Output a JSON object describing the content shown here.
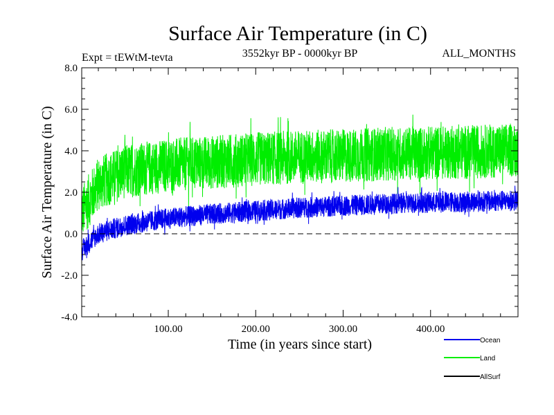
{
  "chart_data": {
    "type": "line",
    "title": "Surface Air Temperature (in C)",
    "subtitle_left": "Expt = tEWtM-tevta",
    "subtitle_center": "3552kyr BP - 0000kyr BP",
    "subtitle_right": "ALL_MONTHS",
    "xlabel": "Time (in years since start)",
    "ylabel": "Surface Air Temperature (in C)",
    "xlim": [
      1,
      500
    ],
    "ylim": [
      -4.0,
      8.0
    ],
    "x_ticks": [
      100,
      200,
      300,
      400
    ],
    "x_tick_labels": [
      "100.00",
      "200.00",
      "300.00",
      "400.00"
    ],
    "y_ticks": [
      -4,
      -2,
      0,
      2,
      4,
      6,
      8
    ],
    "y_tick_labels": [
      "-4.0",
      "-2.0",
      "0.0",
      "2.0",
      "4.0",
      "6.0",
      "8.0"
    ],
    "reference_line_y": 0,
    "series": [
      {
        "name": "Land",
        "color": "#00ee00",
        "trend_x": [
          1,
          20,
          50,
          100,
          150,
          200,
          250,
          300,
          350,
          400,
          450,
          500
        ],
        "trend_mean": [
          1.0,
          2.4,
          3.0,
          3.3,
          3.45,
          3.6,
          3.7,
          3.75,
          3.85,
          3.9,
          3.95,
          4.05
        ],
        "noise_amplitude": 1.3
      },
      {
        "name": "Ocean",
        "color": "#0000ee",
        "trend_x": [
          1,
          20,
          50,
          100,
          150,
          200,
          250,
          300,
          350,
          400,
          450,
          500
        ],
        "trend_mean": [
          -0.8,
          0.0,
          0.4,
          0.75,
          0.95,
          1.1,
          1.25,
          1.35,
          1.45,
          1.5,
          1.55,
          1.6
        ],
        "noise_amplitude": 0.5
      },
      {
        "name": "AllSurf",
        "color": "#000000",
        "trend_x": [],
        "trend_mean": [],
        "noise_amplitude": 0
      }
    ],
    "legend": [
      "Ocean",
      "Land",
      "AllSurf"
    ],
    "legend_position": "bottom-right"
  }
}
